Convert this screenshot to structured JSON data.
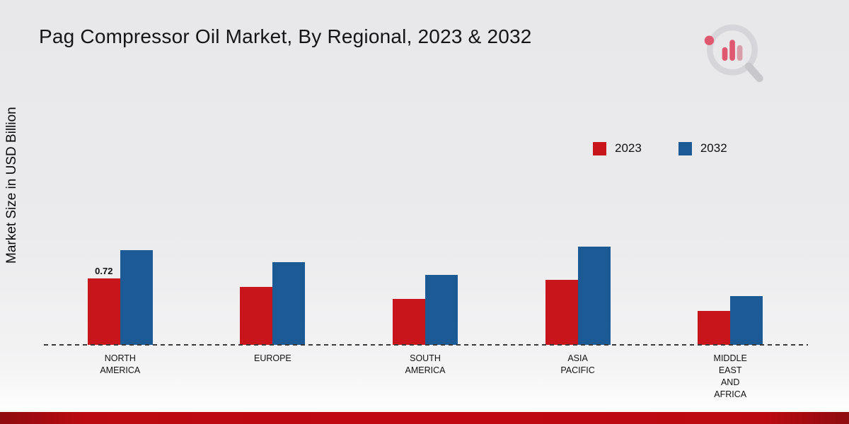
{
  "header": {
    "title": "Pag Compressor Oil Market, By Regional, 2023 & 2032"
  },
  "y_axis_label": "Market Size in USD Billion",
  "legend": [
    {
      "label": "2023",
      "color": "#c8151c"
    },
    {
      "label": "2032",
      "color": "#1c5a96"
    }
  ],
  "icons": {
    "logo": "chart-magnifier-logo"
  },
  "colors": {
    "series_2023": "#c8151c",
    "series_2032": "#1c5a96",
    "footer": "#c00712",
    "background": "#ebebed"
  },
  "chart_data": {
    "type": "bar",
    "title": "Pag Compressor Oil Market, By Regional, 2023 & 2032",
    "xlabel": "",
    "ylabel": "Market Size in USD Billion",
    "ylim": [
      0,
      1.2
    ],
    "grid": false,
    "legend_position": "top-right",
    "baseline_style": "dashed",
    "categories": [
      "North America",
      "Europe",
      "South America",
      "Asia Pacific",
      "Middle East and Africa"
    ],
    "category_label_lines": [
      [
        "NORTH",
        "AMERICA"
      ],
      [
        "EUROPE"
      ],
      [
        "SOUTH",
        "AMERICA"
      ],
      [
        "ASIA",
        "PACIFIC"
      ],
      [
        "MIDDLE",
        "EAST",
        "AND",
        "AFRICA"
      ]
    ],
    "series": [
      {
        "name": "2023",
        "color": "#c8151c",
        "values": [
          0.72,
          0.63,
          0.5,
          0.71,
          0.37
        ]
      },
      {
        "name": "2032",
        "color": "#1c5a96",
        "values": [
          1.03,
          0.9,
          0.76,
          1.07,
          0.53
        ]
      }
    ],
    "annotations": [
      {
        "series": "2023",
        "category": "North America",
        "text": "0.72"
      }
    ]
  }
}
